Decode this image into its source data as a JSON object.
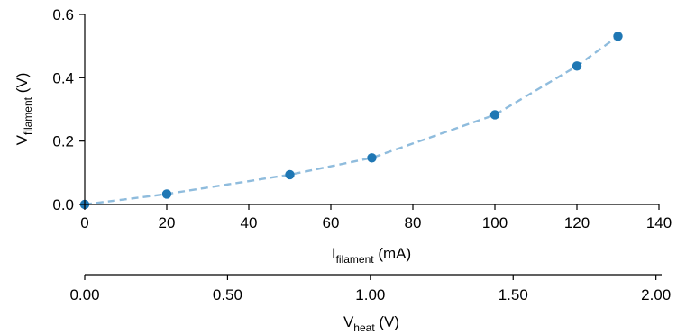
{
  "chart_data": {
    "type": "line",
    "x": [
      0,
      20,
      50,
      70,
      100,
      120,
      130
    ],
    "series": [
      {
        "values": [
          0.0,
          0.033,
          0.094,
          0.147,
          0.283,
          0.437,
          0.531
        ]
      }
    ],
    "xlabel": {
      "main": "I",
      "sub": "filament",
      "unit": " (mA)"
    },
    "ylabel": {
      "main": "V",
      "sub": "filament",
      "unit": " (V)"
    },
    "secondary_xlabel": {
      "main": "V",
      "sub": "heat",
      "unit": " (V)"
    },
    "xlim": [
      0,
      140
    ],
    "ylim": [
      0,
      0.6
    ],
    "xticks": [
      "0",
      "20",
      "40",
      "60",
      "80",
      "100",
      "120",
      "140"
    ],
    "yticks": [
      "0.0",
      "0.2",
      "0.4",
      "0.6"
    ],
    "secondary_xlim": [
      0,
      2.02
    ],
    "secondary_xticks": [
      "0.00",
      "0.50",
      "1.00",
      "1.50",
      "2.00"
    ],
    "grid": false,
    "colors": {
      "line": "#8fbcdd",
      "marker": "#1f77b4"
    }
  }
}
